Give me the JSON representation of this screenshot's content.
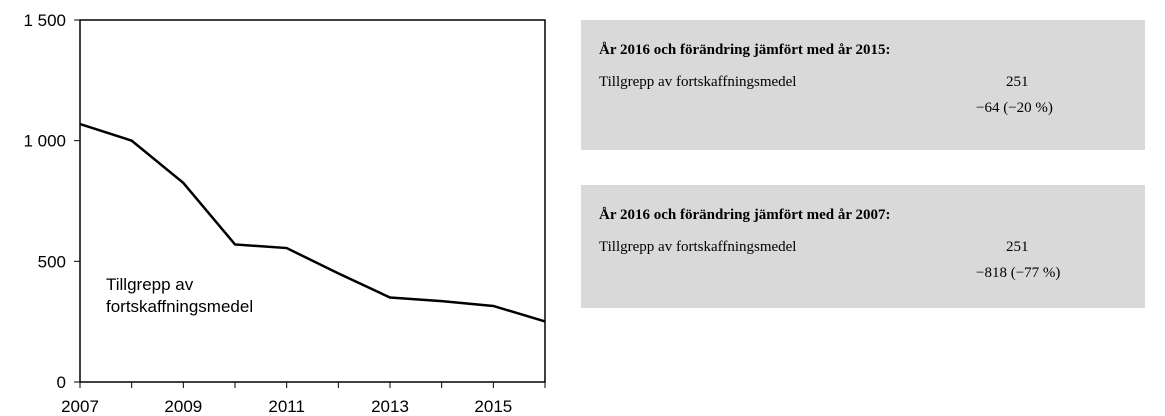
{
  "chart_data": {
    "type": "line",
    "annotation": [
      "Tillgrepp av",
      "fortskaffningsmedel"
    ],
    "x": [
      2007,
      2008,
      2009,
      2010,
      2011,
      2012,
      2013,
      2014,
      2015,
      2016
    ],
    "series": [
      {
        "name": "Tillgrepp av fortskaffningsmedel",
        "color": "#000000",
        "values": [
          1069,
          1000,
          825,
          570,
          555,
          450,
          350,
          335,
          315,
          251
        ]
      }
    ],
    "xlim": [
      2007,
      2016
    ],
    "xticks": [
      2007,
      2009,
      2011,
      2013,
      2015
    ],
    "xminorticks": [
      2008,
      2010,
      2012,
      2014,
      2016
    ],
    "ylim": [
      0,
      1500
    ],
    "yticks": [
      0,
      500,
      {
        "value": 1000,
        "label": "1 000"
      },
      {
        "value": 1500,
        "label": "1 500"
      }
    ],
    "grid": false
  },
  "boxes": [
    {
      "title": "År 2016 och förändring jämfört med år 2015:",
      "label": "Tillgrepp av fortskaffningsmedel",
      "value": "251",
      "change": "−64 (−20 %)"
    },
    {
      "title": "År 2016 och förändring jämfört med år 2007:",
      "label": "Tillgrepp av fortskaffningsmedel",
      "value": "251",
      "change": "−818 (−77 %)"
    }
  ]
}
